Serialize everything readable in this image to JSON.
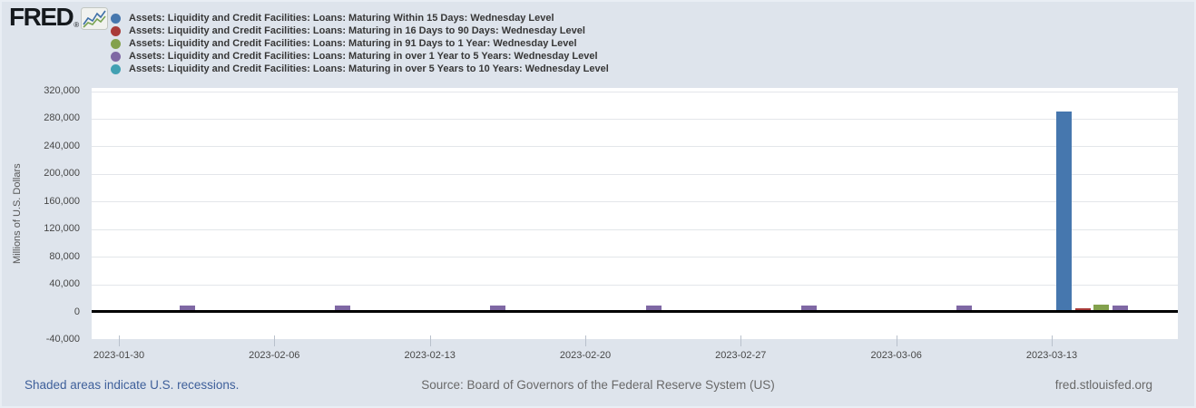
{
  "brand": {
    "name": "FRED",
    "registered": "®",
    "logo_icon": "sparkline-chart-icon"
  },
  "footer": {
    "recessions_note": "Shaded areas indicate U.S. recessions.",
    "source": "Source: Board of Governors of the Federal Reserve System (US)",
    "site": "fred.stlouisfed.org"
  },
  "chart_data": {
    "type": "bar",
    "ylabel": "Millions of U.S. Dollars",
    "ylim": [
      -40000,
      325000
    ],
    "grid": "horizontal",
    "legend_position": "top-left",
    "y_tick_values": [
      320000,
      280000,
      240000,
      200000,
      160000,
      120000,
      80000,
      40000,
      0,
      -40000
    ],
    "y_tick_labels": [
      "320,000",
      "280,000",
      "240,000",
      "200,000",
      "160,000",
      "120,000",
      "80,000",
      "40,000",
      "0",
      "-40,000"
    ],
    "x_tick_labels": [
      "2023-01-30",
      "2023-02-06",
      "2023-02-13",
      "2023-02-20",
      "2023-02-27",
      "2023-03-06",
      "2023-03-13"
    ],
    "categories": [
      "2023-02-01",
      "2023-02-08",
      "2023-02-15",
      "2023-02-22",
      "2023-03-01",
      "2023-03-08",
      "2023-03-15"
    ],
    "series": [
      {
        "name": "Assets: Liquidity and Credit Facilities: Loans: Maturing Within 15 Days: Wednesday Level",
        "short": "within-15-days",
        "color": "#4677ae",
        "values": [
          0,
          0,
          0,
          0,
          0,
          0,
          290000
        ]
      },
      {
        "name": "Assets: Liquidity and Credit Facilities: Loans: Maturing in 16 Days to 90 Days: Wednesday Level",
        "short": "16-to-90-days",
        "color": "#a93b39",
        "values": [
          0,
          0,
          0,
          0,
          0,
          0,
          5500
        ]
      },
      {
        "name": "Assets: Liquidity and Credit Facilities: Loans: Maturing in 91 Days to 1 Year: Wednesday Level",
        "short": "91-days-to-1-year",
        "color": "#83a14d",
        "values": [
          0,
          0,
          0,
          0,
          0,
          0,
          10400
        ]
      },
      {
        "name": "Assets: Liquidity and Credit Facilities: Loans: Maturing in over 1 Year to 5 Years: Wednesday Level",
        "short": "1-to-5-years",
        "color": "#7f68a4",
        "values": [
          9400,
          9400,
          9400,
          9400,
          9400,
          9400,
          9400
        ]
      },
      {
        "name": "Assets: Liquidity and Credit Facilities: Loans: Maturing in over 5 Years to 10 Years: Wednesday Level",
        "short": "5-to-10-years",
        "color": "#42a0b2",
        "values": [
          0,
          0,
          0,
          0,
          0,
          0,
          0
        ]
      }
    ]
  }
}
